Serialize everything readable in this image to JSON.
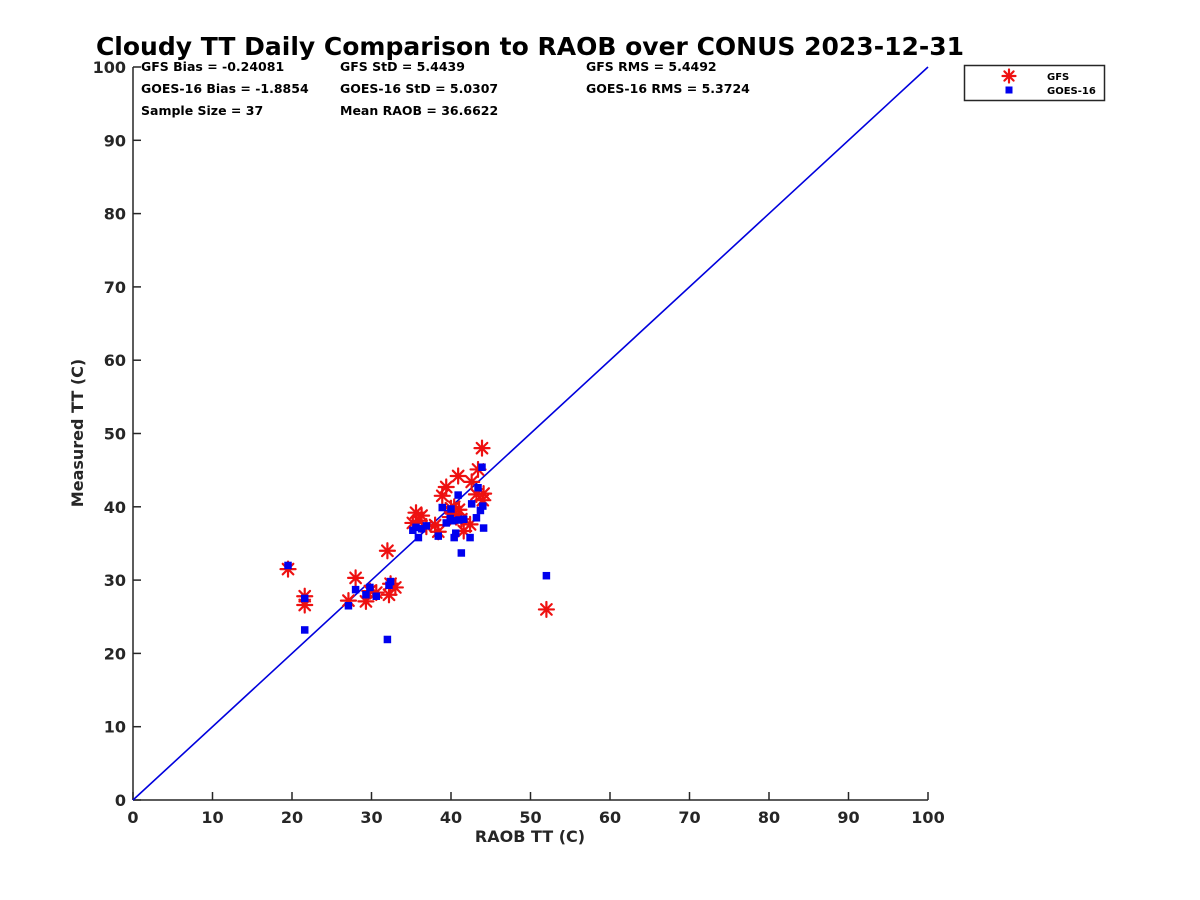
{
  "chart_data": {
    "type": "scatter",
    "title": "Cloudy TT Daily Comparison to RAOB over CONUS 2023-12-31",
    "xlabel": "RAOB TT (C)",
    "ylabel": "Measured TT (C)",
    "xlim": [
      0,
      100
    ],
    "ylim": [
      0,
      100
    ],
    "xticks": [
      "0",
      "10",
      "20",
      "30",
      "40",
      "50",
      "60",
      "70",
      "80",
      "90",
      "100"
    ],
    "yticks": [
      "0",
      "10",
      "20",
      "30",
      "40",
      "50",
      "60",
      "70",
      "80",
      "90",
      "100"
    ],
    "grid": false,
    "legend_position": "outside top-right",
    "reference_line": {
      "from": [
        0,
        0
      ],
      "to": [
        100,
        100
      ],
      "color": "#0000dd"
    },
    "stats": [
      [
        "GFS Bias = -0.24081",
        "GFS StD = 5.4439",
        "GFS RMS = 5.4492"
      ],
      [
        "GOES-16 Bias = -1.8854",
        "GOES-16 StD = 5.0307",
        "GOES-16 RMS = 5.3724"
      ],
      [
        "Sample Size = 37",
        "Mean RAOB = 36.6622",
        ""
      ]
    ],
    "series": [
      {
        "name": "GFS",
        "marker": "asterisk",
        "color": "#ee1111",
        "points": [
          [
            19.5,
            31.5
          ],
          [
            21.6,
            27.8
          ],
          [
            21.6,
            26.6
          ],
          [
            27.1,
            27.2
          ],
          [
            28.0,
            30.3
          ],
          [
            29.3,
            27.1
          ],
          [
            29.8,
            28.5
          ],
          [
            30.6,
            28.3
          ],
          [
            32.0,
            34.0
          ],
          [
            32.2,
            28.0
          ],
          [
            32.4,
            29.5
          ],
          [
            35.2,
            37.8
          ],
          [
            35.6,
            39.2
          ],
          [
            35.9,
            38.1
          ],
          [
            36.3,
            38.8
          ],
          [
            36.9,
            37.3
          ],
          [
            38.4,
            36.6
          ],
          [
            38.9,
            41.5
          ],
          [
            39.4,
            42.7
          ],
          [
            39.9,
            38.6
          ],
          [
            40.0,
            39.8
          ],
          [
            40.4,
            40.0
          ],
          [
            40.9,
            44.2
          ],
          [
            41.0,
            39.6
          ],
          [
            41.3,
            38.3
          ],
          [
            41.6,
            36.7
          ],
          [
            42.4,
            37.6
          ],
          [
            42.6,
            43.4
          ],
          [
            43.2,
            41.7
          ],
          [
            43.4,
            45.1
          ],
          [
            43.9,
            48.0
          ],
          [
            44.0,
            40.9
          ],
          [
            44.1,
            41.8
          ],
          [
            52.0,
            26.0
          ],
          [
            33.0,
            29.0
          ],
          [
            38.0,
            37.5
          ],
          [
            40.5,
            39.0
          ]
        ]
      },
      {
        "name": "GOES-16",
        "marker": "square",
        "color": "#0000ee",
        "points": [
          [
            19.5,
            32.0
          ],
          [
            21.6,
            27.5
          ],
          [
            21.6,
            23.2
          ],
          [
            27.1,
            26.5
          ],
          [
            28.0,
            28.7
          ],
          [
            29.3,
            28.0
          ],
          [
            29.8,
            29.0
          ],
          [
            30.6,
            27.8
          ],
          [
            32.0,
            21.9
          ],
          [
            32.2,
            29.3
          ],
          [
            32.4,
            29.8
          ],
          [
            35.2,
            36.8
          ],
          [
            35.6,
            37.2
          ],
          [
            35.9,
            35.8
          ],
          [
            36.3,
            37.0
          ],
          [
            36.9,
            37.4
          ],
          [
            38.4,
            36.0
          ],
          [
            38.9,
            39.9
          ],
          [
            39.4,
            37.8
          ],
          [
            39.9,
            38.4
          ],
          [
            40.0,
            39.7
          ],
          [
            40.4,
            35.8
          ],
          [
            40.9,
            41.6
          ],
          [
            41.0,
            38.2
          ],
          [
            41.3,
            33.7
          ],
          [
            41.6,
            38.3
          ],
          [
            42.4,
            35.8
          ],
          [
            42.6,
            40.4
          ],
          [
            43.2,
            38.5
          ],
          [
            43.4,
            42.6
          ],
          [
            43.9,
            45.4
          ],
          [
            44.0,
            40.1
          ],
          [
            44.1,
            37.1
          ],
          [
            52.0,
            30.6
          ],
          [
            40.6,
            36.4
          ],
          [
            40.2,
            38.1
          ],
          [
            43.7,
            39.5
          ]
        ]
      }
    ]
  }
}
